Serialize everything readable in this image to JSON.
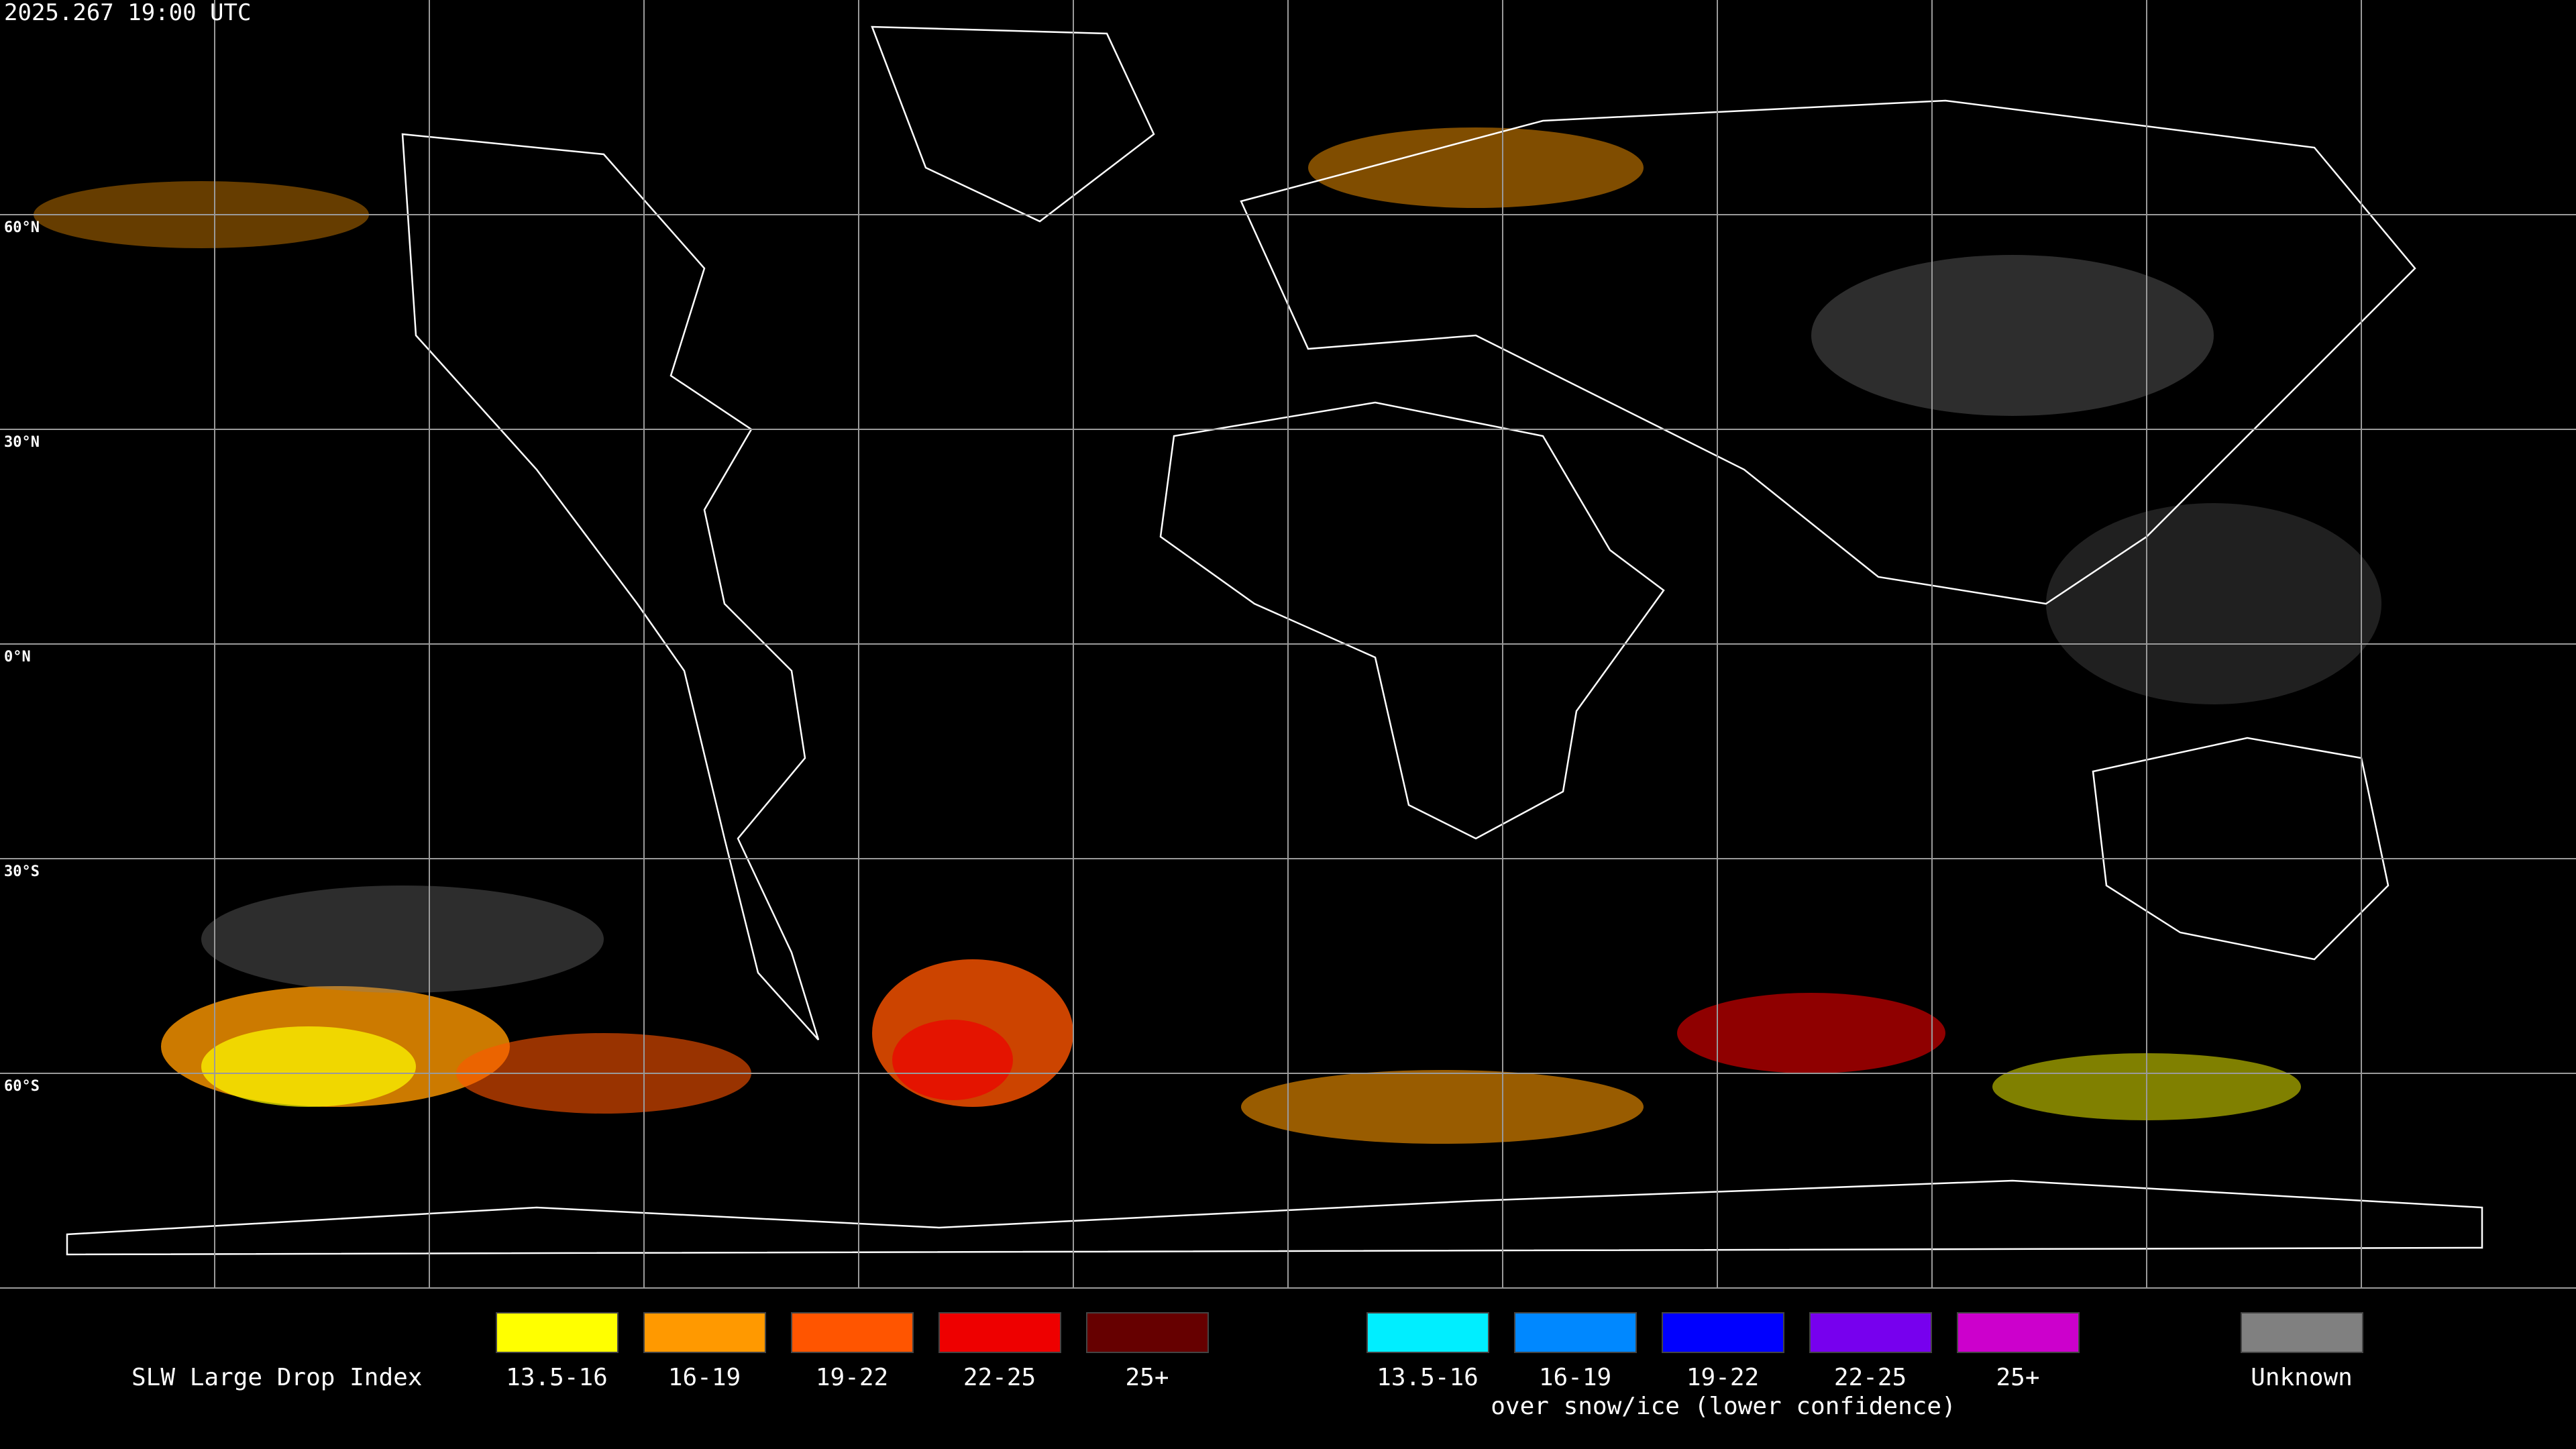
{
  "header": {
    "title": "2025.267 19:00 UTC"
  },
  "map": {
    "latitude_labels": [
      "60°N",
      "30°N",
      "0°N",
      "30°S",
      "60°S"
    ]
  },
  "legend": {
    "title": "SLW Large Drop Index",
    "entries": [
      {
        "label": "13.5-16",
        "color": "#ffff00"
      },
      {
        "label": "16-19",
        "color": "#ff9900"
      },
      {
        "label": "19-22",
        "color": "#ff5500"
      },
      {
        "label": "22-25",
        "color": "#ee0000"
      },
      {
        "label": "25+",
        "color": "#660000"
      }
    ],
    "snow_ice_entries": [
      {
        "label": "13.5-16",
        "color": "#00eeff"
      },
      {
        "label": "16-19",
        "color": "#0088ff"
      },
      {
        "label": "19-22",
        "color": "#0000ff"
      },
      {
        "label": "22-25",
        "color": "#7700ee"
      },
      {
        "label": "25+",
        "color": "#cc00cc"
      }
    ],
    "snow_ice_note": "over snow/ice (lower confidence)",
    "unknown": {
      "label": "Unknown",
      "color": "#808080"
    }
  }
}
